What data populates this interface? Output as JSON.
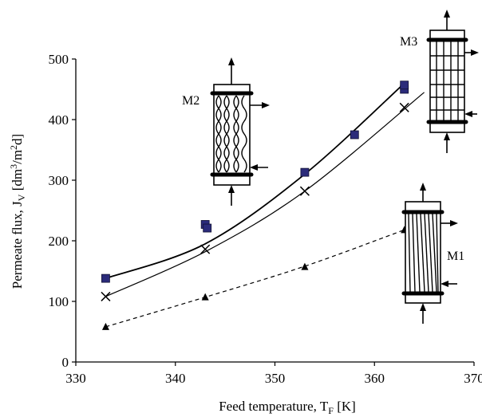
{
  "chart_data": {
    "type": "line",
    "xlabel": "Feed temperature, T",
    "xlabel_sub": "F",
    "xlabel_unit": " [K]",
    "ylabel": "Permeate flux, J",
    "ylabel_sub": "V",
    "ylabel_unit": " [dm",
    "ylabel_sup1": "3",
    "ylabel_unit2": "/m",
    "ylabel_sup2": "2",
    "ylabel_unit3": "d]",
    "xlim": [
      330,
      370
    ],
    "ylim": [
      0,
      500
    ],
    "x_ticks": [
      "330",
      "340",
      "350",
      "360",
      "370"
    ],
    "y_ticks": [
      "0",
      "100",
      "200",
      "300",
      "400",
      "500"
    ],
    "grid": false,
    "series": [
      {
        "marker": "square",
        "color": "#2b2b7a",
        "line_style": "solid",
        "points": [
          [
            333,
            138
          ],
          [
            343,
            227
          ],
          [
            343.2,
            221
          ],
          [
            353,
            313
          ],
          [
            358,
            375
          ],
          [
            363,
            450
          ],
          [
            363,
            457
          ]
        ],
        "fit": [
          [
            333,
            138
          ],
          [
            343,
            195
          ],
          [
            353,
            310
          ],
          [
            363,
            460
          ]
        ]
      },
      {
        "marker": "x",
        "color": "#000000",
        "line_style": "solid",
        "points": [
          [
            333,
            108
          ],
          [
            343,
            186
          ],
          [
            353,
            282
          ],
          [
            363,
            420
          ]
        ],
        "fit": [
          [
            333,
            108
          ],
          [
            343,
            182
          ],
          [
            353,
            282
          ],
          [
            365,
            445
          ]
        ]
      },
      {
        "marker": "triangle",
        "color": "#000000",
        "line_style": "dashed",
        "points": [
          [
            333,
            58
          ],
          [
            343,
            107
          ],
          [
            353,
            157
          ],
          [
            363,
            218
          ]
        ],
        "fit": [
          [
            333,
            58
          ],
          [
            343,
            107
          ],
          [
            353,
            158
          ],
          [
            363,
            218
          ]
        ]
      }
    ],
    "annotations": [
      "M1",
      "M2",
      "M3"
    ]
  }
}
